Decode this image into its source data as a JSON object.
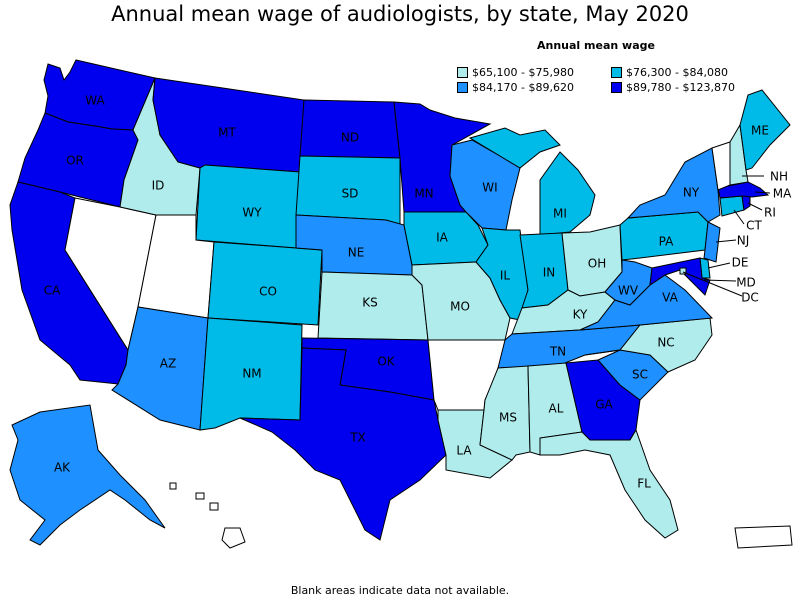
{
  "title": "Annual mean wage of audiologists, by state, May 2020",
  "legend": {
    "title": "Annual mean wage",
    "items": [
      {
        "range": "$65,100 - $75,980",
        "color": "#b0ecec"
      },
      {
        "range": "$76,300 - $84,080",
        "color": "#00bbe8"
      },
      {
        "range": "$84,170 - $89,620",
        "color": "#1e90ff"
      },
      {
        "range": "$89,780 - $123,870",
        "color": "#0000ee"
      }
    ]
  },
  "footnote": "Blank areas indicate data not available.",
  "colors": {
    "no_data": "#ffffff",
    "border": "#000000"
  },
  "states": {
    "WA": {
      "label": "WA",
      "bin": 3
    },
    "OR": {
      "label": "OR",
      "bin": 3
    },
    "CA": {
      "label": "CA",
      "bin": 3
    },
    "ID": {
      "label": "ID",
      "bin": 0
    },
    "NV": {
      "label": "",
      "bin": -1
    },
    "UT": {
      "label": "",
      "bin": -1
    },
    "MT": {
      "label": "MT",
      "bin": 3
    },
    "WY": {
      "label": "WY",
      "bin": 1
    },
    "CO": {
      "label": "CO",
      "bin": 1
    },
    "AZ": {
      "label": "AZ",
      "bin": 2
    },
    "NM": {
      "label": "NM",
      "bin": 1
    },
    "ND": {
      "label": "ND",
      "bin": 3
    },
    "SD": {
      "label": "SD",
      "bin": 1
    },
    "NE": {
      "label": "NE",
      "bin": 2
    },
    "KS": {
      "label": "KS",
      "bin": 0
    },
    "OK": {
      "label": "OK",
      "bin": 3
    },
    "TX": {
      "label": "TX",
      "bin": 3
    },
    "MN": {
      "label": "MN",
      "bin": 3
    },
    "IA": {
      "label": "IA",
      "bin": 1
    },
    "MO": {
      "label": "MO",
      "bin": 0
    },
    "AR": {
      "label": "",
      "bin": -1
    },
    "LA": {
      "label": "LA",
      "bin": 0
    },
    "WI": {
      "label": "WI",
      "bin": 2
    },
    "IL": {
      "label": "IL",
      "bin": 1
    },
    "MI": {
      "label": "MI",
      "bin": 1
    },
    "IN": {
      "label": "IN",
      "bin": 1
    },
    "OH": {
      "label": "OH",
      "bin": 0
    },
    "KY": {
      "label": "KY",
      "bin": 0
    },
    "TN": {
      "label": "TN",
      "bin": 2
    },
    "MS": {
      "label": "MS",
      "bin": 0
    },
    "AL": {
      "label": "AL",
      "bin": 0
    },
    "GA": {
      "label": "GA",
      "bin": 3
    },
    "FL": {
      "label": "FL",
      "bin": 0
    },
    "SC": {
      "label": "SC",
      "bin": 2
    },
    "NC": {
      "label": "NC",
      "bin": 0
    },
    "VA": {
      "label": "VA",
      "bin": 2
    },
    "WV": {
      "label": "WV",
      "bin": 2
    },
    "PA": {
      "label": "PA",
      "bin": 1
    },
    "NY": {
      "label": "NY",
      "bin": 2
    },
    "ME": {
      "label": "ME",
      "bin": 1
    },
    "VT": {
      "label": "",
      "bin": -1
    },
    "NH": {
      "label": "NH",
      "bin": 0
    },
    "MA": {
      "label": "MA",
      "bin": 3
    },
    "RI": {
      "label": "RI",
      "bin": 3
    },
    "CT": {
      "label": "CT",
      "bin": 1
    },
    "NJ": {
      "label": "NJ",
      "bin": 2
    },
    "DE": {
      "label": "DE",
      "bin": 1
    },
    "MD": {
      "label": "MD",
      "bin": 3
    },
    "DC": {
      "label": "DC",
      "bin": 0
    },
    "AK": {
      "label": "AK",
      "bin": 2
    },
    "HI": {
      "label": "",
      "bin": -1
    },
    "PR": {
      "label": "",
      "bin": -1
    }
  }
}
